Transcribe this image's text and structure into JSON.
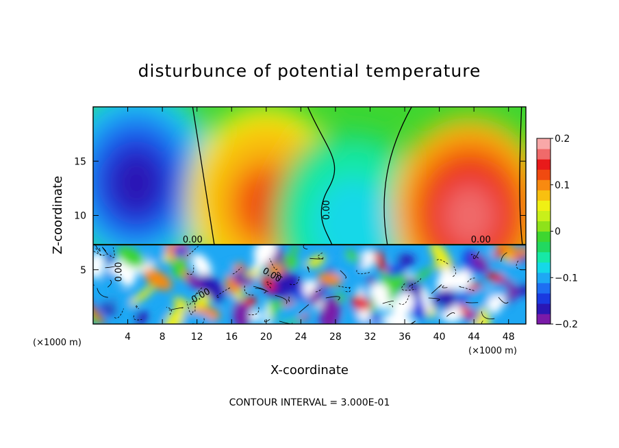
{
  "chart_data": {
    "type": "heatmap",
    "title": "disturbunce of potential temperature",
    "xlabel": "X-coordinate",
    "ylabel": "Z-coordinate",
    "x_unit": "(×1000 m)",
    "z_unit": "(×1000 m)",
    "xlim": [
      0,
      50
    ],
    "ylim": [
      0,
      20
    ],
    "x_ticks": [
      4,
      8,
      12,
      16,
      20,
      24,
      28,
      32,
      36,
      40,
      44,
      48
    ],
    "y_ticks": [
      5,
      10,
      15
    ],
    "colorbar": {
      "vmin": -0.2,
      "vmax": 0.2,
      "tick_values": [
        0.2,
        0.1,
        0,
        -0.1,
        -0.2
      ],
      "tick_labels": [
        "0.2",
        "0.1",
        "0",
        "−0.1",
        "−0.2"
      ],
      "colors": [
        "#7a1aa8",
        "#2a17b4",
        "#1a3ae0",
        "#1e6ef2",
        "#1ea8f4",
        "#15d8e8",
        "#17e8a6",
        "#22d860",
        "#3ed630",
        "#8ee21a",
        "#c8f01a",
        "#f0f014",
        "#f8c010",
        "#f88a10",
        "#f04a10",
        "#e81a1a",
        "#f06a6a",
        "#f8a8a8"
      ]
    },
    "contour_labels": [
      "0.00",
      "0.00",
      "0.00",
      "0.00",
      "0.00",
      "0.00"
    ],
    "contour_interval": "CONTOUR INTERVAL = 3.000E-01",
    "upper_layer_features": [
      {
        "x": 5,
        "z": 13.5,
        "value": -0.17
      },
      {
        "x": 20,
        "z": 11.5,
        "value": 0.12
      },
      {
        "x": 30,
        "z": 9.5,
        "value": -0.08
      },
      {
        "x": 43.5,
        "z": 10.5,
        "value": 0.17
      }
    ],
    "turbulent_layer_top_z": 7.3
  }
}
